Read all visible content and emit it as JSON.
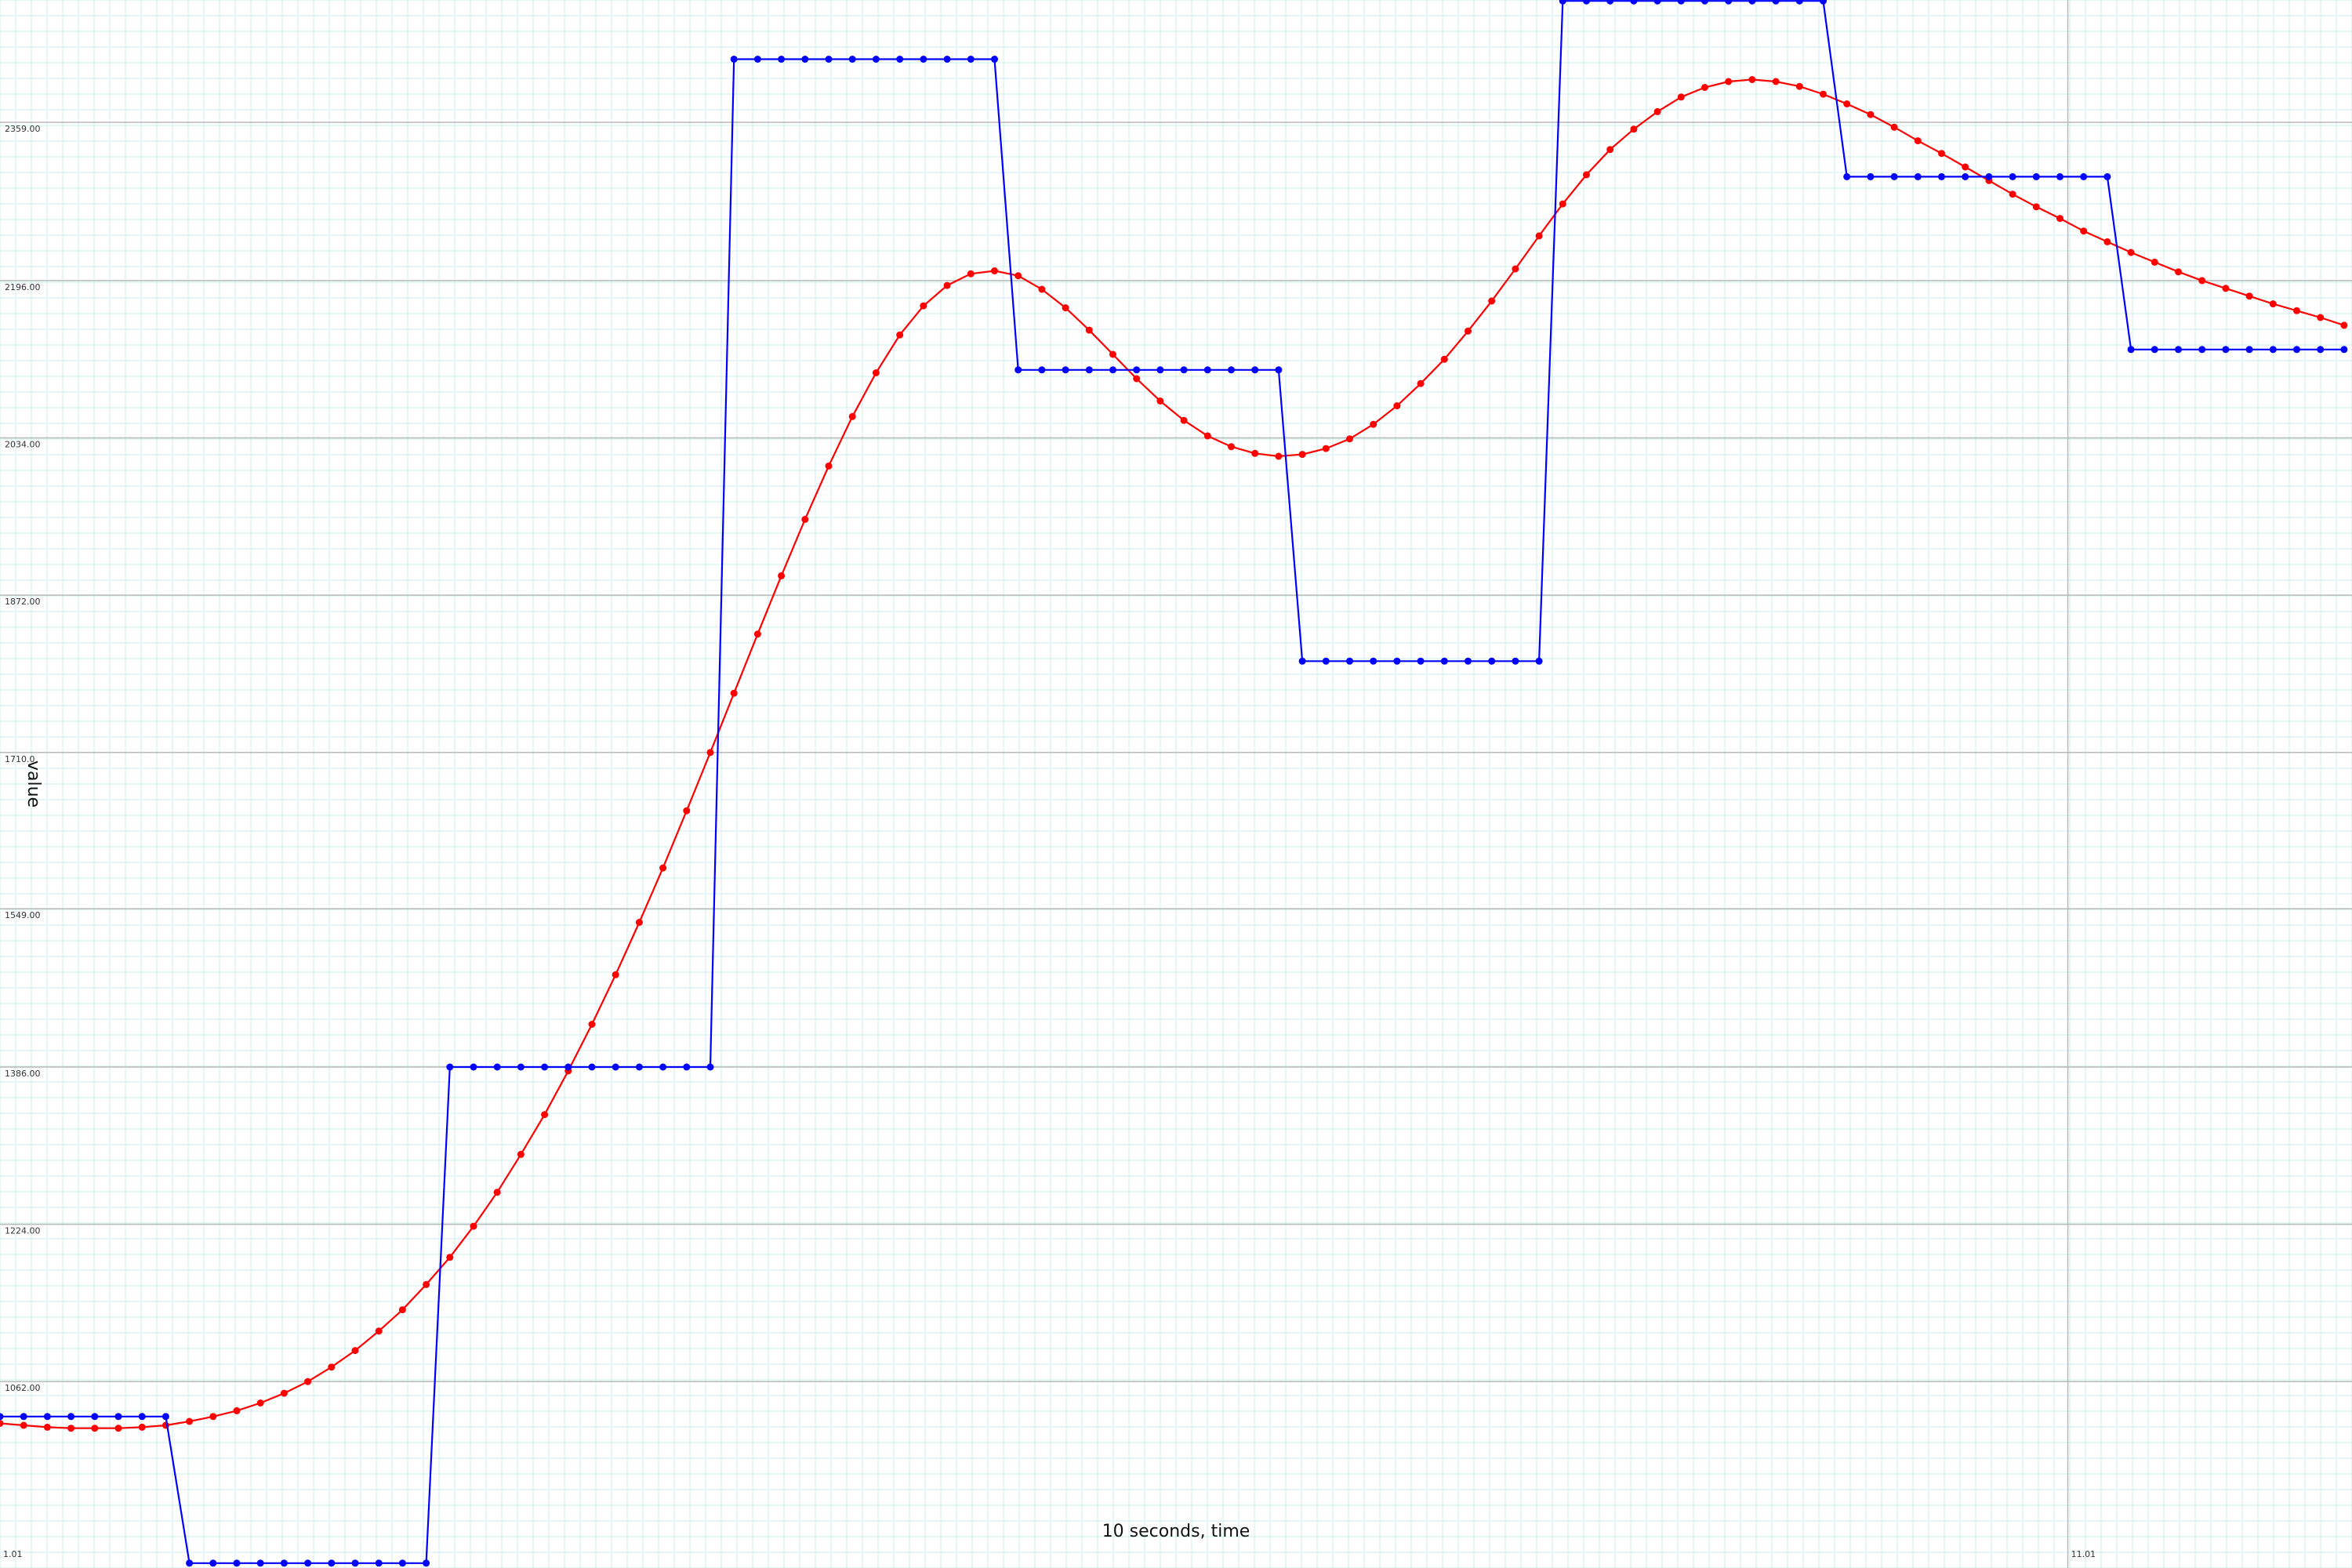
{
  "chart_data": {
    "type": "line",
    "title": "",
    "xlabel": "10 seconds, time",
    "ylabel": "value",
    "grid": true,
    "minor_grid": true,
    "xlim": [
      0,
      2.98
    ],
    "ylim": [
      870,
      2485
    ],
    "y_ticks": [
      {
        "value": 1062,
        "label": "1062.00"
      },
      {
        "value": 1224,
        "label": "1224.00"
      },
      {
        "value": 1386,
        "label": "1386.00"
      },
      {
        "value": 1549,
        "label": "1549.00"
      },
      {
        "value": 1710,
        "label": "1710.0"
      },
      {
        "value": 1872,
        "label": "1872.00"
      },
      {
        "value": 2034,
        "label": "2034.00"
      },
      {
        "value": 2196,
        "label": "2196.00"
      },
      {
        "value": 2359,
        "label": "2359.00"
      }
    ],
    "x_ticks": [
      {
        "value": 0,
        "label": "1.01"
      },
      {
        "value": 2.62,
        "label": "11.01"
      }
    ],
    "series": [
      {
        "color": "#ff0000",
        "values": [
          [
            0.0,
            1019
          ],
          [
            0.03,
            1017
          ],
          [
            0.06,
            1015
          ],
          [
            0.09,
            1014
          ],
          [
            0.12,
            1014
          ],
          [
            0.15,
            1014
          ],
          [
            0.18,
            1015
          ],
          [
            0.21,
            1017
          ],
          [
            0.24,
            1021
          ],
          [
            0.27,
            1026
          ],
          [
            0.3,
            1032
          ],
          [
            0.33,
            1040
          ],
          [
            0.36,
            1050
          ],
          [
            0.39,
            1062
          ],
          [
            0.42,
            1077
          ],
          [
            0.45,
            1094
          ],
          [
            0.48,
            1114
          ],
          [
            0.51,
            1136
          ],
          [
            0.54,
            1162
          ],
          [
            0.57,
            1190
          ],
          [
            0.6,
            1222
          ],
          [
            0.63,
            1257
          ],
          [
            0.66,
            1296
          ],
          [
            0.69,
            1337
          ],
          [
            0.72,
            1382
          ],
          [
            0.75,
            1430
          ],
          [
            0.78,
            1481
          ],
          [
            0.81,
            1535
          ],
          [
            0.84,
            1591
          ],
          [
            0.87,
            1650
          ],
          [
            0.9,
            1710
          ],
          [
            0.93,
            1771
          ],
          [
            0.96,
            1832
          ],
          [
            0.99,
            1892
          ],
          [
            1.02,
            1950
          ],
          [
            1.05,
            2005
          ],
          [
            1.08,
            2056
          ],
          [
            1.11,
            2101
          ],
          [
            1.14,
            2140
          ],
          [
            1.17,
            2170
          ],
          [
            1.2,
            2191
          ],
          [
            1.23,
            2203
          ],
          [
            1.26,
            2206
          ],
          [
            1.29,
            2201
          ],
          [
            1.32,
            2187
          ],
          [
            1.35,
            2168
          ],
          [
            1.38,
            2145
          ],
          [
            1.41,
            2120
          ],
          [
            1.44,
            2095
          ],
          [
            1.47,
            2072
          ],
          [
            1.5,
            2052
          ],
          [
            1.53,
            2036
          ],
          [
            1.56,
            2025
          ],
          [
            1.59,
            2018
          ],
          [
            1.62,
            2015
          ],
          [
            1.65,
            2017
          ],
          [
            1.68,
            2023
          ],
          [
            1.71,
            2033
          ],
          [
            1.74,
            2048
          ],
          [
            1.77,
            2067
          ],
          [
            1.8,
            2090
          ],
          [
            1.83,
            2115
          ],
          [
            1.86,
            2144
          ],
          [
            1.89,
            2175
          ],
          [
            1.92,
            2208
          ],
          [
            1.95,
            2242
          ],
          [
            1.98,
            2275
          ],
          [
            2.01,
            2305
          ],
          [
            2.04,
            2331
          ],
          [
            2.07,
            2352
          ],
          [
            2.1,
            2370
          ],
          [
            2.13,
            2385
          ],
          [
            2.16,
            2395
          ],
          [
            2.19,
            2401
          ],
          [
            2.22,
            2403
          ],
          [
            2.25,
            2401
          ],
          [
            2.28,
            2396
          ],
          [
            2.31,
            2388
          ],
          [
            2.34,
            2378
          ],
          [
            2.37,
            2367
          ],
          [
            2.4,
            2354
          ],
          [
            2.43,
            2340
          ],
          [
            2.46,
            2327
          ],
          [
            2.49,
            2313
          ],
          [
            2.52,
            2299
          ],
          [
            2.55,
            2285
          ],
          [
            2.58,
            2272
          ],
          [
            2.61,
            2260
          ],
          [
            2.64,
            2247
          ],
          [
            2.67,
            2236
          ],
          [
            2.7,
            2225
          ],
          [
            2.73,
            2215
          ],
          [
            2.76,
            2205
          ],
          [
            2.79,
            2196
          ],
          [
            2.82,
            2188
          ],
          [
            2.85,
            2180
          ],
          [
            2.88,
            2172
          ],
          [
            2.91,
            2165
          ],
          [
            2.94,
            2158
          ],
          [
            2.97,
            2150
          ]
        ]
      },
      {
        "color": "#0000ff",
        "values": [
          [
            0.0,
            1026
          ],
          [
            0.03,
            1026
          ],
          [
            0.06,
            1026
          ],
          [
            0.09,
            1026
          ],
          [
            0.12,
            1026
          ],
          [
            0.15,
            1026
          ],
          [
            0.18,
            1026
          ],
          [
            0.21,
            1026
          ],
          [
            0.24,
            875
          ],
          [
            0.27,
            875
          ],
          [
            0.3,
            875
          ],
          [
            0.33,
            875
          ],
          [
            0.36,
            875
          ],
          [
            0.39,
            875
          ],
          [
            0.42,
            875
          ],
          [
            0.45,
            875
          ],
          [
            0.48,
            875
          ],
          [
            0.51,
            875
          ],
          [
            0.54,
            875
          ],
          [
            0.57,
            1386
          ],
          [
            0.6,
            1386
          ],
          [
            0.63,
            1386
          ],
          [
            0.66,
            1386
          ],
          [
            0.69,
            1386
          ],
          [
            0.72,
            1386
          ],
          [
            0.75,
            1386
          ],
          [
            0.78,
            1386
          ],
          [
            0.81,
            1386
          ],
          [
            0.84,
            1386
          ],
          [
            0.87,
            1386
          ],
          [
            0.9,
            1386
          ],
          [
            0.93,
            2424
          ],
          [
            0.96,
            2424
          ],
          [
            0.99,
            2424
          ],
          [
            1.02,
            2424
          ],
          [
            1.05,
            2424
          ],
          [
            1.08,
            2424
          ],
          [
            1.11,
            2424
          ],
          [
            1.14,
            2424
          ],
          [
            1.17,
            2424
          ],
          [
            1.2,
            2424
          ],
          [
            1.23,
            2424
          ],
          [
            1.26,
            2424
          ],
          [
            1.29,
            2104
          ],
          [
            1.32,
            2104
          ],
          [
            1.35,
            2104
          ],
          [
            1.38,
            2104
          ],
          [
            1.41,
            2104
          ],
          [
            1.44,
            2104
          ],
          [
            1.47,
            2104
          ],
          [
            1.5,
            2104
          ],
          [
            1.53,
            2104
          ],
          [
            1.56,
            2104
          ],
          [
            1.59,
            2104
          ],
          [
            1.62,
            2104
          ],
          [
            1.65,
            1804
          ],
          [
            1.68,
            1804
          ],
          [
            1.71,
            1804
          ],
          [
            1.74,
            1804
          ],
          [
            1.77,
            1804
          ],
          [
            1.8,
            1804
          ],
          [
            1.83,
            1804
          ],
          [
            1.86,
            1804
          ],
          [
            1.89,
            1804
          ],
          [
            1.92,
            1804
          ],
          [
            1.95,
            1804
          ],
          [
            1.98,
            2484
          ],
          [
            2.01,
            2484
          ],
          [
            2.04,
            2484
          ],
          [
            2.07,
            2484
          ],
          [
            2.1,
            2484
          ],
          [
            2.13,
            2484
          ],
          [
            2.16,
            2484
          ],
          [
            2.19,
            2484
          ],
          [
            2.22,
            2484
          ],
          [
            2.25,
            2484
          ],
          [
            2.28,
            2484
          ],
          [
            2.31,
            2484
          ],
          [
            2.34,
            2303
          ],
          [
            2.37,
            2303
          ],
          [
            2.4,
            2303
          ],
          [
            2.43,
            2303
          ],
          [
            2.46,
            2303
          ],
          [
            2.49,
            2303
          ],
          [
            2.52,
            2303
          ],
          [
            2.55,
            2303
          ],
          [
            2.58,
            2303
          ],
          [
            2.61,
            2303
          ],
          [
            2.64,
            2303
          ],
          [
            2.67,
            2303
          ],
          [
            2.7,
            2125
          ],
          [
            2.73,
            2125
          ],
          [
            2.76,
            2125
          ],
          [
            2.79,
            2125
          ],
          [
            2.82,
            2125
          ],
          [
            2.85,
            2125
          ],
          [
            2.88,
            2125
          ],
          [
            2.91,
            2125
          ],
          [
            2.94,
            2125
          ],
          [
            2.97,
            2125
          ]
        ]
      }
    ]
  }
}
